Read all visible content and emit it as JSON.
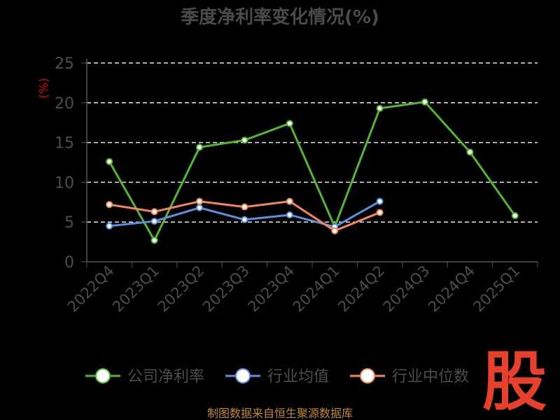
{
  "chart_data": {
    "type": "line",
    "title": "季度净利率变化情况(%)",
    "ylabel": "(%)",
    "xlabel": "",
    "categories": [
      "2022Q4",
      "2023Q1",
      "2023Q2",
      "2023Q3",
      "2023Q4",
      "2024Q1",
      "2024Q2",
      "2024Q3",
      "2024Q4",
      "2025Q1"
    ],
    "ylim": [
      0,
      25
    ],
    "yticks": [
      0,
      5,
      10,
      15,
      20,
      25
    ],
    "grid": true,
    "legend_position": "bottom",
    "series": [
      {
        "name": "公司净利率",
        "color": "#52b82a",
        "values": [
          12.6,
          2.7,
          14.4,
          15.3,
          17.4,
          4.4,
          19.3,
          20.1,
          13.8,
          5.8
        ]
      },
      {
        "name": "行业均值",
        "color": "#5b8fe0",
        "values": [
          4.5,
          5.1,
          6.8,
          5.3,
          5.9,
          4.4,
          7.6,
          null,
          null,
          null
        ]
      },
      {
        "name": "行业中位数",
        "color": "#f4875a",
        "values": [
          7.2,
          6.3,
          7.6,
          6.9,
          7.6,
          3.9,
          6.2,
          null,
          null,
          null
        ]
      }
    ]
  },
  "logo_text": "股",
  "source_text": "制图数据来自恒生聚源数据库"
}
